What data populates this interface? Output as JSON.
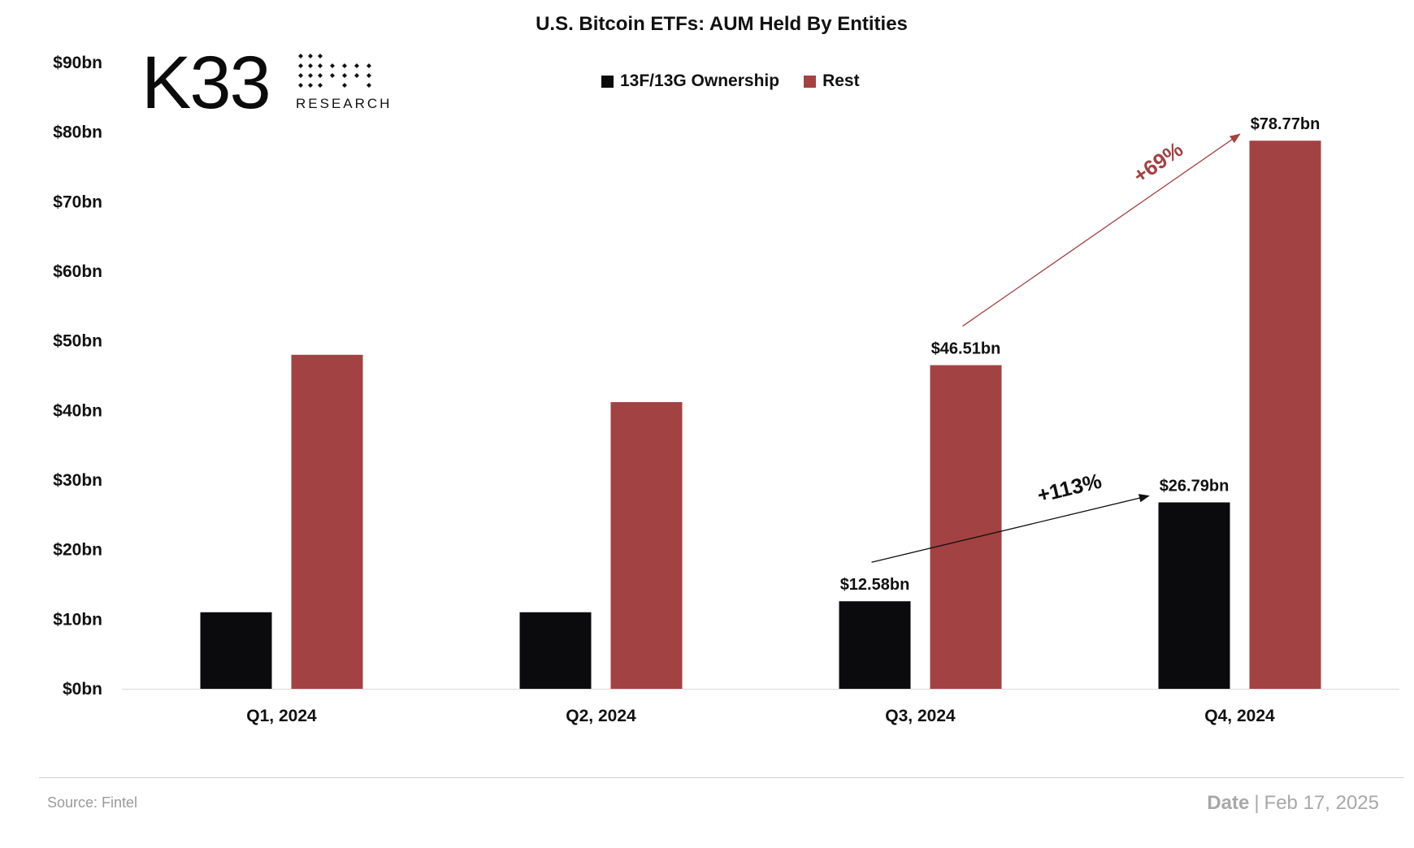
{
  "chart_data": {
    "type": "bar",
    "title": "U.S. Bitcoin ETFs: AUM Held By Entities",
    "categories": [
      "Q1, 2024",
      "Q2, 2024",
      "Q3, 2024",
      "Q4, 2024"
    ],
    "series": [
      {
        "name": "13F/13G Ownership",
        "color": "#0b0b0d",
        "values": [
          11.0,
          11.0,
          12.58,
          26.79
        ]
      },
      {
        "name": "Rest",
        "color": "#a34242",
        "values": [
          48.0,
          41.2,
          46.51,
          78.77
        ]
      }
    ],
    "data_labels": [
      {
        "series": 0,
        "index": 2,
        "text": "$12.58bn"
      },
      {
        "series": 0,
        "index": 3,
        "text": "$26.79bn"
      },
      {
        "series": 1,
        "index": 2,
        "text": "$46.51bn"
      },
      {
        "series": 1,
        "index": 3,
        "text": "$78.77bn"
      }
    ],
    "annotations": [
      {
        "text": "+113%",
        "color": "#111111",
        "from": {
          "series": 0,
          "index": 2
        },
        "to": {
          "series": 0,
          "index": 3
        }
      },
      {
        "text": "+69%",
        "color": "#a34242",
        "from": {
          "series": 1,
          "index": 2
        },
        "to": {
          "series": 1,
          "index": 3
        }
      }
    ],
    "y_ticks": [
      "$0bn",
      "$10bn",
      "$20bn",
      "$30bn",
      "$40bn",
      "$50bn",
      "$60bn",
      "$70bn",
      "$80bn",
      "$90bn"
    ],
    "ylim": [
      0,
      90
    ],
    "grid": false,
    "legend_position": "top"
  },
  "logo": {
    "main": "K33",
    "sub": "RESEARCH"
  },
  "footer": {
    "source": "Source: Fintel",
    "date_label": "Date",
    "date_separator": "|",
    "date_value": "Feb 17, 2025"
  }
}
